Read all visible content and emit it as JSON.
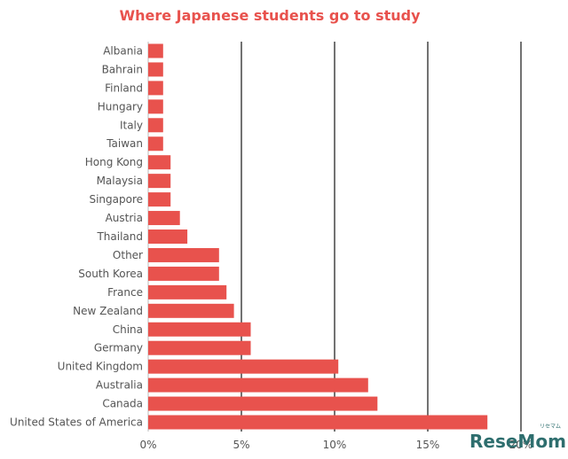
{
  "chart_data": {
    "type": "bar",
    "orientation": "horizontal",
    "title": "Where Japanese students go to study",
    "categories": [
      "Albania",
      "Bahrain",
      "Finland",
      "Hungary",
      "Italy",
      "Taiwan",
      "Hong Kong",
      "Malaysia",
      "Singapore",
      "Austria",
      "Thailand",
      "Other",
      "South Korea",
      "France",
      "New Zealand",
      "China",
      "Germany",
      "United Kingdom",
      "Australia",
      "Canada",
      "United States of America"
    ],
    "values": [
      0.8,
      0.8,
      0.8,
      0.8,
      0.8,
      0.8,
      1.2,
      1.2,
      1.2,
      1.7,
      2.1,
      3.8,
      3.8,
      4.2,
      4.6,
      5.5,
      5.5,
      10.2,
      11.8,
      12.3,
      18.2
    ],
    "xlim": [
      0,
      20
    ],
    "xticks": [
      "0%",
      "5%",
      "10%",
      "15%",
      "20%"
    ],
    "xtick_values": [
      0,
      5,
      10,
      15,
      20
    ],
    "grid": "vertical",
    "bar_color": "#e8524d",
    "title_color": "#e8524d"
  },
  "watermark": {
    "text": "ReseMom",
    "sub": "リセマム",
    "color": "#2e6e6e"
  }
}
